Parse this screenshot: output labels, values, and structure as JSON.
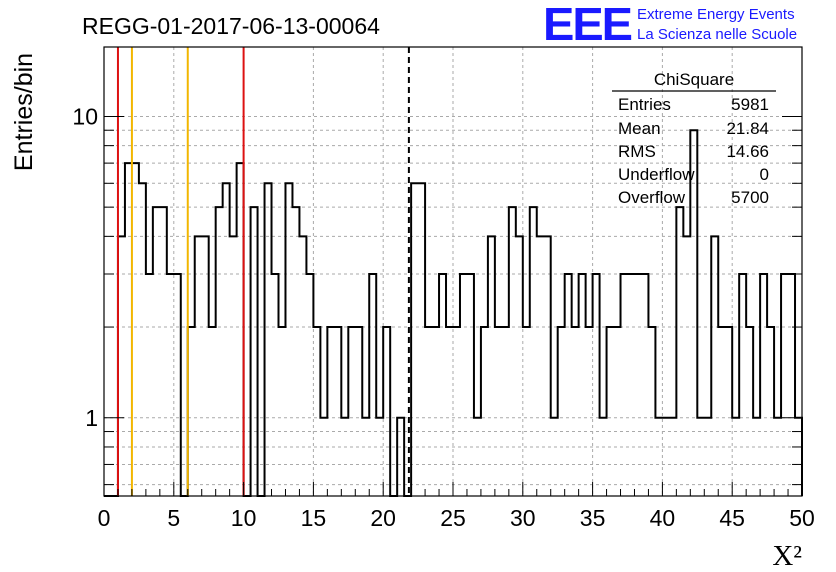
{
  "header": {
    "run_title": "REGG-01-2017-06-13-00064",
    "logo_text": "EEE",
    "logo_line1": "Extreme Energy Events",
    "logo_line2": "La Scienza nelle Scuole"
  },
  "colors": {
    "histogram": "#000000",
    "red_lines": "#dd1111",
    "orange_lines": "#f2b600",
    "logo_blue": "#1a1aff",
    "grid": "#aaaaaa"
  },
  "stats_box": {
    "title": "ChiSquare",
    "rows": [
      {
        "label": "Entries",
        "value": "5981"
      },
      {
        "label": "Mean",
        "value": "21.84"
      },
      {
        "label": "RMS",
        "value": "14.66"
      },
      {
        "label": "Underflow",
        "value": "0"
      },
      {
        "label": "Overflow",
        "value": "5700"
      }
    ]
  },
  "chart_data": {
    "type": "histogram",
    "title": "REGG-01-2017-06-13-00064",
    "xlabel": "X²",
    "ylabel": "Entries/bin",
    "xlim": [
      0,
      50
    ],
    "ylim": [
      0.55,
      17
    ],
    "y_scale": "log",
    "grid": true,
    "bin_width": 0.5,
    "x_ticks": [
      "0",
      "5",
      "10",
      "15",
      "20",
      "25",
      "30",
      "35",
      "40",
      "45",
      "50"
    ],
    "y_ticks": [
      "1",
      "10"
    ],
    "values": [
      0,
      0,
      4,
      7,
      7,
      6,
      3,
      5,
      5,
      3,
      3,
      0,
      2,
      4,
      4,
      2,
      5,
      6,
      4,
      7,
      0,
      5,
      0,
      6,
      3,
      2,
      6,
      5,
      4,
      3,
      2,
      1,
      2,
      2,
      1,
      2,
      2,
      1,
      3,
      1,
      2,
      0,
      1,
      0,
      6,
      6,
      2,
      2,
      3,
      2,
      2,
      3,
      3,
      1,
      2,
      4,
      2,
      2,
      5,
      4,
      2,
      5,
      4,
      4,
      1,
      2,
      3,
      2,
      3,
      2,
      3,
      1,
      2,
      2,
      3,
      3,
      3,
      3,
      2,
      1,
      1,
      1,
      5,
      4,
      9,
      1,
      1,
      4,
      2,
      2,
      1,
      3,
      2,
      1,
      3,
      2,
      1,
      3,
      3,
      1
    ],
    "vertical_lines": [
      {
        "x": 1,
        "style": "solid",
        "color": "#dd1111"
      },
      {
        "x": 2,
        "style": "solid",
        "color": "#f2b600"
      },
      {
        "x": 6,
        "style": "solid",
        "color": "#f2b600"
      },
      {
        "x": 10,
        "style": "solid",
        "color": "#dd1111"
      },
      {
        "x": 21.84,
        "style": "dashed",
        "color": "#000000"
      }
    ]
  }
}
